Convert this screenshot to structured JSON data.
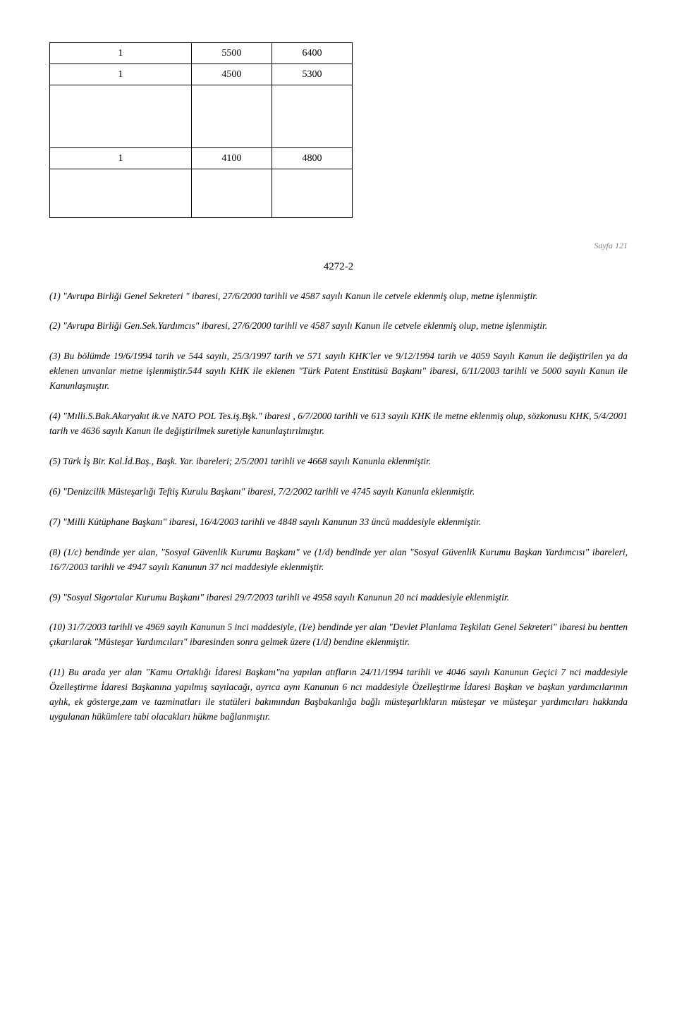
{
  "table": {
    "row1": {
      "c1": "1",
      "c2": "5500",
      "c3": "6400"
    },
    "row2": {
      "c1": "1",
      "c2": "4500",
      "c3": "5300"
    },
    "row3": {
      "c1": "1",
      "c2": "4100",
      "c3": "4800"
    }
  },
  "page_number": "Sayfa 121",
  "section_code": "4272-2",
  "notes": {
    "n1": "(1) \"Avrupa Birliği Genel Sekreteri \" ibaresi, 27/6/2000 tarihli ve 4587 sayılı Kanun ile cetvele eklenmiş olup, metne işlenmiştir.",
    "n2": "(2) \"Avrupa Birliği Gen.Sek.Yardımcıs\" ibaresi, 27/6/2000 tarihli ve 4587 sayılı Kanun ile cetvele eklenmiş olup, metne işlenmiştir.",
    "n3": "(3) Bu bölümde 19/6/1994 tarih ve 544 sayılı, 25/3/1997 tarih ve 571 sayılı KHK'ler ve 9/12/1994 tarih ve 4059 Sayılı Kanun ile değiştirilen ya da eklenen unvanlar metne işlenmiştir.544 sayılı KHK ile eklenen \"Türk Patent Enstitüsü Başkanı\" ibaresi, 6/11/2003 tarihli ve 5000 sayılı Kanun ile Kanunlaşmıştır.",
    "n4": "(4) \"Mılli.S.Bak.Akaryakıt ik.ve NATO POL Tes.iş.Bşk.\" ibaresi , 6/7/2000 tarihli ve 613 sayılı KHK ile metne eklenmiş olup, sözkonusu KHK, 5/4/2001 tarih ve 4636 sayılı Kanun ile değiştirilmek suretiyle kanunlaştırılmıştır.",
    "n5": "(5) Türk İş Bir. Kal.İd.Baş., Başk. Yar. ibareleri; 2/5/2001 tarihli ve 4668 sayılı Kanunla eklenmiştir.",
    "n6": "(6) \"Denizcilik Müsteşarlığı Teftiş Kurulu Başkanı\" ibaresi, 7/2/2002 tarihli ve 4745 sayılı Kanunla eklenmiştir.",
    "n7": "(7) \"Milli Kütüphane Başkanı\" ibaresi, 16/4/2003 tarihli ve 4848 sayılı Kanunun 33 üncü maddesiyle eklenmiştir.",
    "n8": "(8) (1/c) bendinde yer alan, \"Sosyal Güvenlik Kurumu Başkanı\" ve (1/d) bendinde yer alan \"Sosyal Güvenlik Kurumu Başkan Yardımcısı\" ibareleri, 16/7/2003 tarihli ve 4947 sayılı Kanunun 37 nci maddesiyle eklenmiştir.",
    "n9": "(9) \"Sosyal Sigortalar Kurumu Başkanı\" ibaresi 29/7/2003 tarihli ve 4958 sayılı Kanunun 20 nci maddesiyle eklenmiştir.",
    "n10": "(10) 31/7/2003 tarihli ve 4969 sayılı Kanunun 5 inci maddesiyle, (I/e) bendinde yer alan \"Devlet Planlama Teşkilatı Genel Sekreteri\" ibaresi bu bentten çıkarılarak \"Müsteşar Yardımcıları\" ibaresinden sonra gelmek üzere (1/d) bendine eklenmiştir.",
    "n11": "(11) Bu arada yer alan \"Kamu Ortaklığı İdaresi Başkanı\"na yapılan atıfların 24/11/1994 tarihli ve 4046 sayılı Kanunun Geçici 7 nci maddesiyle Özelleştirme İdaresi Başkanına yapılmış sayılacağı, ayrıca aynı Kanunun 6 ncı maddesiyle Özelleştirme İdaresi Başkan ve başkan yardımcılarının aylık, ek gösterge,zam ve tazminatları ile statüleri bakımından Başbakanlığa bağlı müsteşarlıkların müsteşar ve müsteşar yardımcıları hakkında uygulanan hükümlere tabi olacakları hükme bağlanmıştır."
  }
}
